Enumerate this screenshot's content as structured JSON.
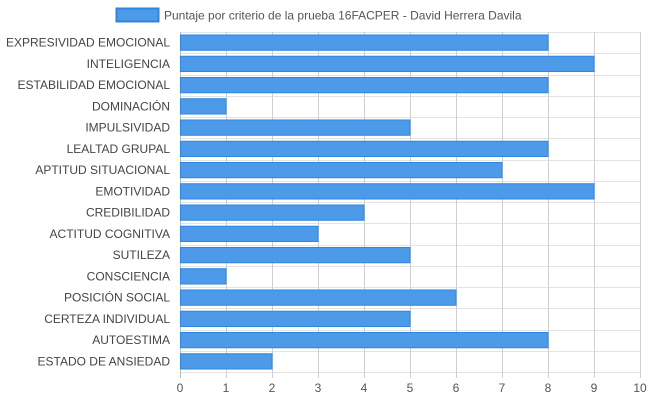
{
  "chart_data": {
    "type": "bar",
    "orientation": "horizontal",
    "categories": [
      "EXPRESIVIDAD EMOCIONAL",
      "INTELIGENCIA",
      "ESTABILIDAD EMOCIONAL",
      "DOMINACIÓN",
      "IMPULSIVIDAD",
      "LEALTAD GRUPAL",
      "APTITUD SITUACIONAL",
      "EMOTIVIDAD",
      "CREDIBILIDAD",
      "ACTITUD COGNITIVA",
      "SUTILEZA",
      "CONSCIENCIA",
      "POSICIÓN SOCIAL",
      "CERTEZA INDIVIDUAL",
      "AUTOESTIMA",
      "ESTADO DE ANSIEDAD"
    ],
    "series": [
      {
        "name": "Puntaje por criterio de la prueba 16FACPER - David Herrera Davila",
        "values": [
          8,
          9,
          8,
          1,
          5,
          8,
          7,
          9,
          4,
          3,
          5,
          1,
          6,
          5,
          8,
          2
        ],
        "color": "#4d9ae8",
        "border_color": "#2f86e0"
      }
    ],
    "xlim": [
      0,
      10
    ],
    "x_ticks": [
      "0",
      "1",
      "2",
      "3",
      "4",
      "5",
      "6",
      "7",
      "8",
      "9",
      "10"
    ],
    "grid": true,
    "legend_position": "top"
  }
}
